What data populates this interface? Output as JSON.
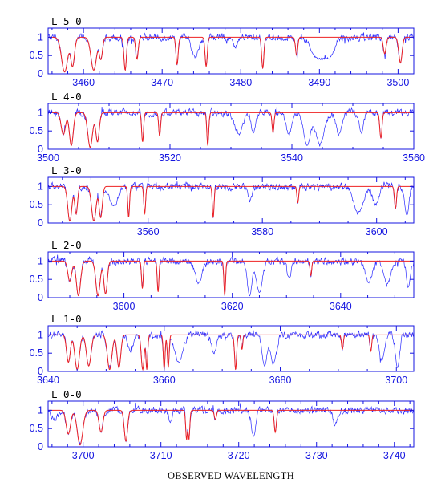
{
  "figure": {
    "xlabel": "OBSERVED WAVELENGTH",
    "colors": {
      "axes": "#1515e0",
      "data": "#2b2bff",
      "model": "#ee2222",
      "text": "#000000"
    }
  },
  "chart_data": [
    {
      "type": "line",
      "title": "L 5-0",
      "xlim": [
        3455.5,
        3502
      ],
      "ylim": [
        0,
        1.25
      ],
      "xticks": [
        3460,
        3470,
        3480,
        3490,
        3500
      ],
      "yticks": [
        0,
        0.5,
        1
      ],
      "grid": false,
      "model_continuum": 1.0,
      "absorption_lines": [
        {
          "x": 3457.6,
          "depth": 0.95,
          "width": 0.55
        },
        {
          "x": 3458.6,
          "depth": 0.8,
          "width": 0.35
        },
        {
          "x": 3461.3,
          "depth": 0.9,
          "width": 0.5
        },
        {
          "x": 3462.2,
          "depth": 0.6,
          "width": 0.3
        },
        {
          "x": 3465.3,
          "depth": 0.9,
          "width": 0.22
        },
        {
          "x": 3466.8,
          "depth": 0.6,
          "width": 0.22
        },
        {
          "x": 3471.9,
          "depth": 0.75,
          "width": 0.2
        },
        {
          "x": 3475.6,
          "depth": 0.8,
          "width": 0.2
        },
        {
          "x": 3482.8,
          "depth": 0.85,
          "width": 0.2
        },
        {
          "x": 3487.1,
          "depth": 0.5,
          "width": 0.2
        },
        {
          "x": 3498.3,
          "depth": 0.45,
          "width": 0.25
        },
        {
          "x": 3500.3,
          "depth": 0.7,
          "width": 0.3
        }
      ],
      "extra_absorption": [
        {
          "x": 3474.2,
          "depth": 0.55,
          "width": 0.6
        },
        {
          "x": 3489.9,
          "depth": 0.6,
          "width": 1.2
        },
        {
          "x": 3491.3,
          "depth": 0.5,
          "width": 0.8
        },
        {
          "x": 3479.3,
          "depth": 0.3,
          "width": 0.4
        }
      ]
    },
    {
      "type": "line",
      "title": "L 4-0",
      "xlim": [
        3500,
        3560
      ],
      "ylim": [
        0,
        1.25
      ],
      "xticks": [
        3500,
        3520,
        3540,
        3560
      ],
      "yticks": [
        0,
        0.5,
        1
      ],
      "grid": false,
      "model_continuum": 1.0,
      "absorption_lines": [
        {
          "x": 3502.5,
          "depth": 0.6,
          "width": 0.5
        },
        {
          "x": 3503.8,
          "depth": 0.9,
          "width": 0.45
        },
        {
          "x": 3506.9,
          "depth": 0.95,
          "width": 0.55
        },
        {
          "x": 3508.1,
          "depth": 0.8,
          "width": 0.4
        },
        {
          "x": 3515.5,
          "depth": 0.8,
          "width": 0.22
        },
        {
          "x": 3518.3,
          "depth": 0.65,
          "width": 0.22
        },
        {
          "x": 3526.2,
          "depth": 0.9,
          "width": 0.22
        },
        {
          "x": 3536.9,
          "depth": 0.55,
          "width": 0.22
        },
        {
          "x": 3554.6,
          "depth": 0.7,
          "width": 0.25
        }
      ],
      "extra_absorption": [
        {
          "x": 3531.3,
          "depth": 0.6,
          "width": 0.9
        },
        {
          "x": 3533.7,
          "depth": 0.55,
          "width": 0.5
        },
        {
          "x": 3539.5,
          "depth": 0.6,
          "width": 0.6
        },
        {
          "x": 3542.5,
          "depth": 0.9,
          "width": 0.8
        },
        {
          "x": 3544.6,
          "depth": 0.85,
          "width": 1.0
        },
        {
          "x": 3547.7,
          "depth": 0.6,
          "width": 0.6
        },
        {
          "x": 3551.4,
          "depth": 0.55,
          "width": 0.5
        }
      ]
    },
    {
      "type": "line",
      "title": "L 3-0",
      "xlim": [
        3542.5,
        3606.5
      ],
      "ylim": [
        0,
        1.25
      ],
      "xticks": [
        3560,
        3580,
        3600
      ],
      "yticks": [
        0,
        0.5,
        1
      ],
      "grid": false,
      "model_continuum": 1.0,
      "absorption_lines": [
        {
          "x": 3546.3,
          "depth": 0.95,
          "width": 0.5
        },
        {
          "x": 3547.4,
          "depth": 0.75,
          "width": 0.35
        },
        {
          "x": 3550.5,
          "depth": 0.95,
          "width": 0.55
        },
        {
          "x": 3551.7,
          "depth": 0.85,
          "width": 0.4
        },
        {
          "x": 3556.6,
          "depth": 0.85,
          "width": 0.22
        },
        {
          "x": 3559.4,
          "depth": 0.75,
          "width": 0.22
        },
        {
          "x": 3571.4,
          "depth": 0.85,
          "width": 0.22
        },
        {
          "x": 3586.2,
          "depth": 0.45,
          "width": 0.22
        },
        {
          "x": 3603.3,
          "depth": 0.6,
          "width": 0.25
        }
      ],
      "extra_absorption": [
        {
          "x": 3554.0,
          "depth": 0.55,
          "width": 1.0
        },
        {
          "x": 3577.8,
          "depth": 0.4,
          "width": 0.5
        },
        {
          "x": 3596.8,
          "depth": 0.7,
          "width": 1.2
        },
        {
          "x": 3599.8,
          "depth": 0.5,
          "width": 0.7
        },
        {
          "x": 3605.3,
          "depth": 0.8,
          "width": 0.5
        }
      ]
    },
    {
      "type": "line",
      "title": "L 2-0",
      "xlim": [
        3586,
        3653.5
      ],
      "ylim": [
        0,
        1.25
      ],
      "xticks": [
        3600,
        3620,
        3640
      ],
      "yticks": [
        0,
        0.5,
        1
      ],
      "grid": false,
      "model_continuum": 1.0,
      "absorption_lines": [
        {
          "x": 3590.0,
          "depth": 0.55,
          "width": 0.5
        },
        {
          "x": 3591.6,
          "depth": 0.95,
          "width": 0.55
        },
        {
          "x": 3595.2,
          "depth": 0.95,
          "width": 0.55
        },
        {
          "x": 3596.6,
          "depth": 0.9,
          "width": 0.45
        },
        {
          "x": 3603.4,
          "depth": 0.75,
          "width": 0.22
        },
        {
          "x": 3606.3,
          "depth": 0.85,
          "width": 0.22
        },
        {
          "x": 3618.6,
          "depth": 0.95,
          "width": 0.22
        },
        {
          "x": 3634.5,
          "depth": 0.4,
          "width": 0.22
        }
      ],
      "extra_absorption": [
        {
          "x": 3613.8,
          "depth": 0.6,
          "width": 0.9
        },
        {
          "x": 3623.2,
          "depth": 0.95,
          "width": 0.6
        },
        {
          "x": 3625.0,
          "depth": 0.85,
          "width": 0.8
        },
        {
          "x": 3630.5,
          "depth": 0.5,
          "width": 0.5
        },
        {
          "x": 3645.2,
          "depth": 0.55,
          "width": 0.9
        },
        {
          "x": 3648.6,
          "depth": 0.6,
          "width": 1.0
        },
        {
          "x": 3652.5,
          "depth": 0.7,
          "width": 0.5
        }
      ]
    },
    {
      "type": "line",
      "title": "L 1-0",
      "xlim": [
        3640,
        3703
      ],
      "ylim": [
        0,
        1.25
      ],
      "xticks": [
        3640,
        3660,
        3680,
        3700
      ],
      "yticks": [
        0,
        0.5,
        1
      ],
      "grid": false,
      "model_continuum": 1.0,
      "absorption_lines": [
        {
          "x": 3643.5,
          "depth": 0.75,
          "width": 0.45
        },
        {
          "x": 3645.0,
          "depth": 0.95,
          "width": 0.55
        },
        {
          "x": 3647.0,
          "depth": 0.85,
          "width": 0.55
        },
        {
          "x": 3650.6,
          "depth": 0.95,
          "width": 0.55
        },
        {
          "x": 3652.2,
          "depth": 0.9,
          "width": 0.45
        },
        {
          "x": 3656.3,
          "depth": 0.95,
          "width": 0.35
        },
        {
          "x": 3657.0,
          "depth": 0.95,
          "width": 0.22
        },
        {
          "x": 3660.0,
          "depth": 0.95,
          "width": 0.22
        },
        {
          "x": 3660.7,
          "depth": 0.9,
          "width": 0.22
        },
        {
          "x": 3672.3,
          "depth": 0.95,
          "width": 0.25
        },
        {
          "x": 3673.4,
          "depth": 0.4,
          "width": 0.2
        },
        {
          "x": 3690.7,
          "depth": 0.4,
          "width": 0.22
        },
        {
          "x": 3695.6,
          "depth": 0.45,
          "width": 0.22
        }
      ],
      "extra_absorption": [
        {
          "x": 3654.2,
          "depth": 0.45,
          "width": 0.6
        },
        {
          "x": 3662.5,
          "depth": 0.75,
          "width": 1.0
        },
        {
          "x": 3668.6,
          "depth": 0.5,
          "width": 0.6
        },
        {
          "x": 3677.3,
          "depth": 0.85,
          "width": 0.6
        },
        {
          "x": 3678.8,
          "depth": 0.8,
          "width": 0.7
        },
        {
          "x": 3697.5,
          "depth": 0.7,
          "width": 0.6
        },
        {
          "x": 3700.2,
          "depth": 0.9,
          "width": 0.5
        }
      ]
    },
    {
      "type": "line",
      "title": "L 0-0",
      "xlim": [
        3695.5,
        3742.5
      ],
      "ylim": [
        0,
        1.25
      ],
      "xticks": [
        3700,
        3710,
        3720,
        3730,
        3740
      ],
      "yticks": [
        0,
        0.5,
        1
      ],
      "grid": false,
      "model_continuum": 1.0,
      "absorption_lines": [
        {
          "x": 3698.1,
          "depth": 0.65,
          "width": 0.4
        },
        {
          "x": 3699.6,
          "depth": 0.95,
          "width": 0.5
        },
        {
          "x": 3702.3,
          "depth": 0.6,
          "width": 0.35
        },
        {
          "x": 3705.5,
          "depth": 0.85,
          "width": 0.3
        },
        {
          "x": 3713.3,
          "depth": 0.8,
          "width": 0.16
        },
        {
          "x": 3713.6,
          "depth": 0.8,
          "width": 0.16
        },
        {
          "x": 3717.0,
          "depth": 0.25,
          "width": 0.2
        },
        {
          "x": 3724.7,
          "depth": 0.6,
          "width": 0.2
        }
      ],
      "extra_absorption": [
        {
          "x": 3696.4,
          "depth": 0.25,
          "width": 0.6
        },
        {
          "x": 3711.2,
          "depth": 0.3,
          "width": 0.3
        },
        {
          "x": 3721.9,
          "depth": 0.7,
          "width": 0.4
        },
        {
          "x": 3732.4,
          "depth": 0.4,
          "width": 0.4
        }
      ]
    }
  ]
}
